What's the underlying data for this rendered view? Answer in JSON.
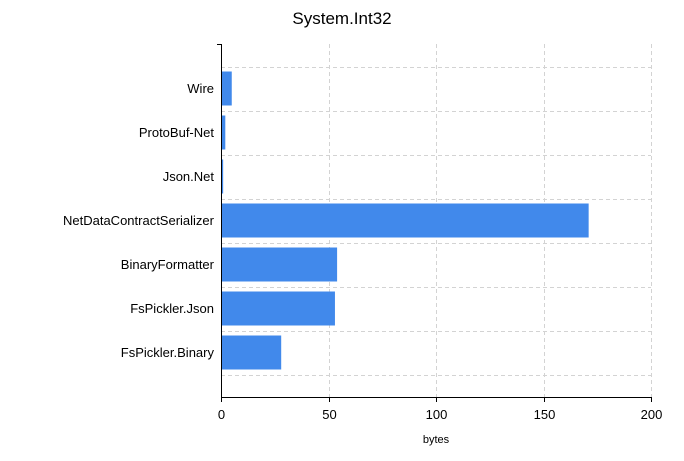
{
  "chart_data": {
    "type": "bar",
    "orientation": "horizontal",
    "title": "System.Int32",
    "xlabel": "bytes",
    "ylabel": "",
    "categories": [
      "FsPickler.Binary",
      "FsPickler.Json",
      "BinaryFormatter",
      "NetDataContractSerializer",
      "Json.Net",
      "ProtoBuf-Net",
      "Wire"
    ],
    "values": [
      28,
      53,
      54,
      171,
      1,
      2,
      5
    ],
    "xlim": [
      0,
      200
    ],
    "xticks": [
      0,
      50,
      100,
      150,
      200
    ],
    "grid": true,
    "legend": "none",
    "bar_color": "#4189eb"
  }
}
